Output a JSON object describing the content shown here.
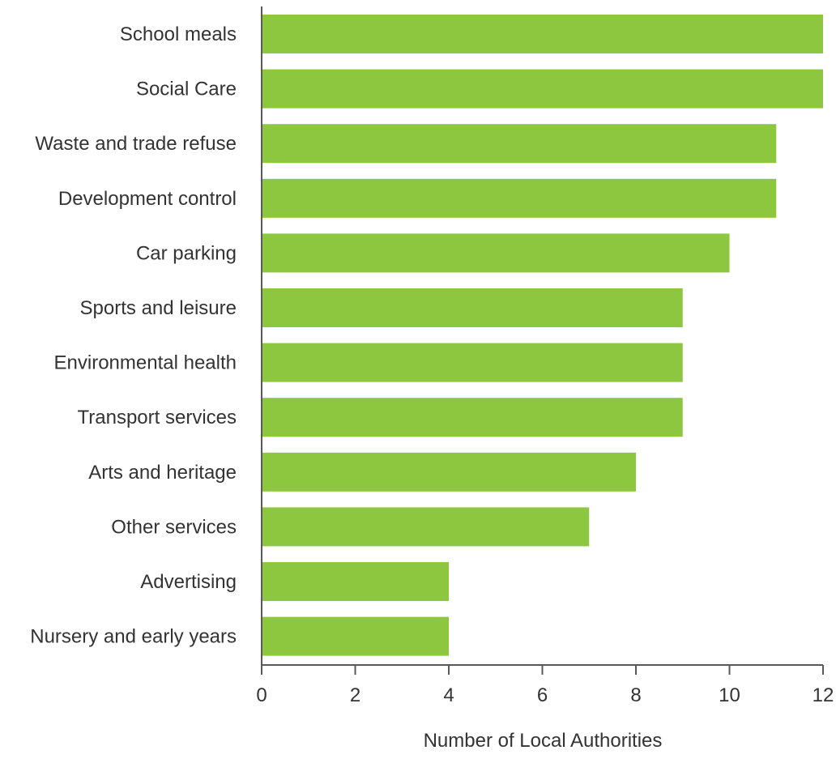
{
  "chart_data": {
    "type": "bar",
    "orientation": "horizontal",
    "categories": [
      "School meals",
      "Social Care",
      "Waste and trade refuse",
      "Development control",
      "Car parking",
      "Sports and leisure",
      "Environmental health",
      "Transport services",
      "Arts and heritage",
      "Other services",
      "Advertising",
      "Nursery and early years"
    ],
    "values": [
      12,
      12,
      11,
      11,
      10,
      9,
      9,
      9,
      8,
      7,
      4,
      4
    ],
    "xlabel": "Number of Local Authorities",
    "ylabel": "",
    "xlim": [
      0,
      12
    ],
    "xticks": [
      "0",
      "2",
      "4",
      "6",
      "8",
      "10",
      "12"
    ],
    "grid": false,
    "legend": "none",
    "colors": {
      "bar": "#8dc63f",
      "axis": "#595959",
      "text": "#333333"
    }
  }
}
